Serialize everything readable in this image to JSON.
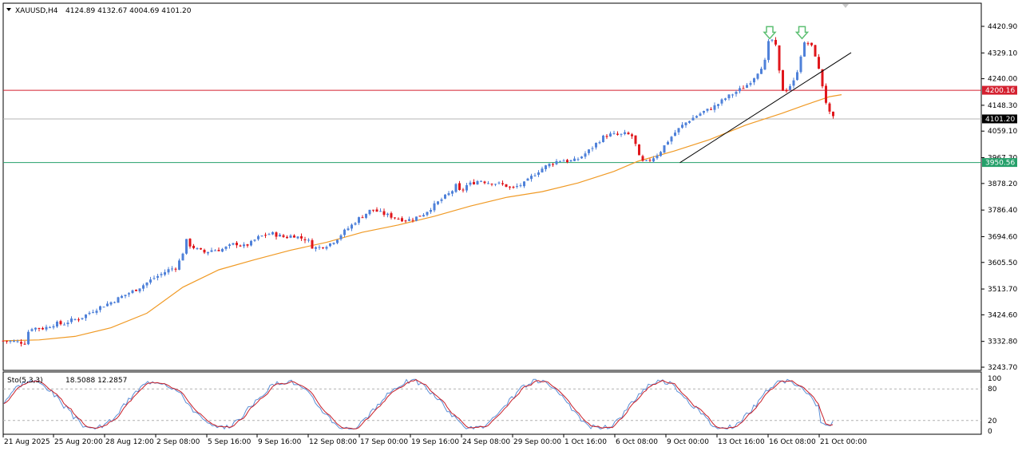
{
  "symbol_header": {
    "symbol": "XAUUSD,H4",
    "ohlc": "4124.89 4132.67 4004.69 4101.20"
  },
  "oscillator_header": {
    "name": "Sto(5,3,3)",
    "values": "18.5088 12.2857"
  },
  "colors": {
    "bull": "#4f81d9",
    "bear": "#e0161b",
    "ma": "#f09a25",
    "resistance_line": "#d4202f",
    "support_line": "#25a06a",
    "current_price_line": "#b4b4b4",
    "trend_line": "#000000",
    "arrow": "#5cbf72",
    "stoch_main": "#5b8fd6",
    "stoch_signal": "#c81e28"
  },
  "chart_data": [
    {
      "type": "candlestick",
      "title": "XAUUSD,H4",
      "y_ticks": [
        "4420.90",
        "4329.10",
        "4240.00",
        "4148.30",
        "4059.10",
        "3967.30",
        "3878.20",
        "3786.40",
        "3694.60",
        "3605.50",
        "3513.70",
        "3424.60",
        "3332.80",
        "3243.70"
      ],
      "ylim": [
        3243.7,
        4440
      ],
      "x_ticks": [
        "21 Aug 2025",
        "25 Aug 20:00",
        "28 Aug 12:00",
        "2 Sep 08:00",
        "5 Sep 16:00",
        "9 Sep 16:00",
        "12 Sep 08:00",
        "17 Sep 00:00",
        "19 Sep 16:00",
        "24 Sep 08:00",
        "29 Sep 00:00",
        "1 Oct 16:00",
        "6 Oct 08:00",
        "9 Oct 00:00",
        "13 Oct 16:00",
        "16 Oct 08:00",
        "21 Oct 00:00"
      ],
      "price_labels": {
        "resistance": "4200.16",
        "current": "4101.20",
        "support": "3950.56"
      },
      "horizontal_levels": {
        "resistance": 4200.16,
        "current": 4101.2,
        "support": 3950.56
      },
      "close_path": [
        [
          0,
          3335
        ],
        [
          10,
          3332
        ],
        [
          18,
          3328
        ],
        [
          22,
          3380
        ],
        [
          34,
          3378
        ],
        [
          44,
          3395
        ],
        [
          50,
          3392
        ],
        [
          56,
          3405
        ],
        [
          64,
          3412
        ],
        [
          72,
          3432
        ],
        [
          80,
          3450
        ],
        [
          90,
          3468
        ],
        [
          100,
          3490
        ],
        [
          110,
          3510
        ],
        [
          118,
          3530
        ],
        [
          125,
          3550
        ],
        [
          132,
          3565
        ],
        [
          138,
          3580
        ],
        [
          145,
          3590
        ],
        [
          150,
          3640
        ],
        [
          153,
          3680
        ],
        [
          156,
          3665
        ],
        [
          162,
          3650
        ],
        [
          168,
          3640
        ],
        [
          174,
          3648
        ],
        [
          182,
          3650
        ],
        [
          188,
          3660
        ],
        [
          194,
          3672
        ],
        [
          200,
          3660
        ],
        [
          206,
          3670
        ],
        [
          212,
          3690
        ],
        [
          218,
          3700
        ],
        [
          224,
          3706
        ],
        [
          230,
          3698
        ],
        [
          236,
          3692
        ],
        [
          242,
          3700
        ],
        [
          248,
          3690
        ],
        [
          254,
          3685
        ],
        [
          258,
          3660
        ],
        [
          262,
          3655
        ],
        [
          266,
          3660
        ],
        [
          272,
          3668
        ],
        [
          278,
          3685
        ],
        [
          284,
          3710
        ],
        [
          290,
          3730
        ],
        [
          296,
          3755
        ],
        [
          302,
          3772
        ],
        [
          308,
          3790
        ],
        [
          314,
          3778
        ],
        [
          320,
          3770
        ],
        [
          326,
          3762
        ],
        [
          332,
          3755
        ],
        [
          338,
          3752
        ],
        [
          344,
          3760
        ],
        [
          350,
          3770
        ],
        [
          356,
          3790
        ],
        [
          362,
          3810
        ],
        [
          368,
          3830
        ],
        [
          374,
          3848
        ],
        [
          378,
          3870
        ],
        [
          382,
          3845
        ],
        [
          386,
          3870
        ],
        [
          392,
          3880
        ],
        [
          398,
          3890
        ],
        [
          404,
          3882
        ],
        [
          410,
          3880
        ],
        [
          416,
          3875
        ],
        [
          420,
          3870
        ],
        [
          424,
          3860
        ],
        [
          430,
          3870
        ],
        [
          436,
          3880
        ],
        [
          442,
          3905
        ],
        [
          448,
          3925
        ],
        [
          454,
          3940
        ],
        [
          460,
          3952
        ],
        [
          466,
          3960
        ],
        [
          472,
          3955
        ],
        [
          478,
          3958
        ],
        [
          484,
          3975
        ],
        [
          490,
          3995
        ],
        [
          496,
          4020
        ],
        [
          502,
          4042
        ],
        [
          508,
          4048
        ],
        [
          514,
          4045
        ],
        [
          520,
          4050
        ],
        [
          526,
          4040
        ],
        [
          532,
          3955
        ],
        [
          536,
          3950
        ],
        [
          542,
          3965
        ],
        [
          548,
          3985
        ],
        [
          554,
          4020
        ],
        [
          560,
          4050
        ],
        [
          566,
          4075
        ],
        [
          572,
          4095
        ],
        [
          578,
          4110
        ],
        [
          584,
          4125
        ],
        [
          590,
          4135
        ],
        [
          596,
          4150
        ],
        [
          602,
          4170
        ],
        [
          608,
          4185
        ],
        [
          614,
          4200
        ],
        [
          620,
          4215
        ],
        [
          626,
          4240
        ],
        [
          632,
          4275
        ],
        [
          636,
          4300
        ],
        [
          638,
          4355
        ],
        [
          641,
          4380
        ],
        [
          644,
          4362
        ],
        [
          646,
          4340
        ],
        [
          649,
          4225
        ],
        [
          652,
          4190
        ],
        [
          655,
          4210
        ],
        [
          658,
          4220
        ],
        [
          661,
          4235
        ],
        [
          664,
          4285
        ],
        [
          667,
          4340
        ],
        [
          670,
          4370
        ],
        [
          673,
          4360
        ],
        [
          676,
          4345
        ],
        [
          679,
          4310
        ],
        [
          682,
          4250
        ],
        [
          685,
          4200
        ],
        [
          688,
          4140
        ],
        [
          691,
          4110
        ],
        [
          694,
          4101
        ]
      ],
      "moving_average": [
        [
          0,
          3335
        ],
        [
          30,
          3338
        ],
        [
          60,
          3350
        ],
        [
          90,
          3380
        ],
        [
          120,
          3430
        ],
        [
          150,
          3520
        ],
        [
          180,
          3580
        ],
        [
          210,
          3615
        ],
        [
          240,
          3648
        ],
        [
          270,
          3675
        ],
        [
          300,
          3710
        ],
        [
          330,
          3735
        ],
        [
          360,
          3765
        ],
        [
          390,
          3800
        ],
        [
          420,
          3830
        ],
        [
          450,
          3850
        ],
        [
          480,
          3880
        ],
        [
          510,
          3920
        ],
        [
          530,
          3955
        ],
        [
          560,
          3990
        ],
        [
          590,
          4030
        ],
        [
          620,
          4080
        ],
        [
          650,
          4120
        ],
        [
          670,
          4150
        ],
        [
          690,
          4178
        ],
        [
          700,
          4185
        ]
      ],
      "trend_line": [
        [
          565,
          3950
        ],
        [
          708,
          4330
        ]
      ],
      "arrows": [
        [
          640,
          4395
        ],
        [
          667,
          4395
        ]
      ]
    },
    {
      "type": "line",
      "title": "Sto(5,3,3)",
      "y_ticks": [
        "100",
        "80",
        "20",
        "0"
      ],
      "ylim": [
        0,
        100
      ],
      "levels": [
        80,
        20
      ],
      "main_last": 18.5088,
      "signal_last": 12.2857
    }
  ]
}
